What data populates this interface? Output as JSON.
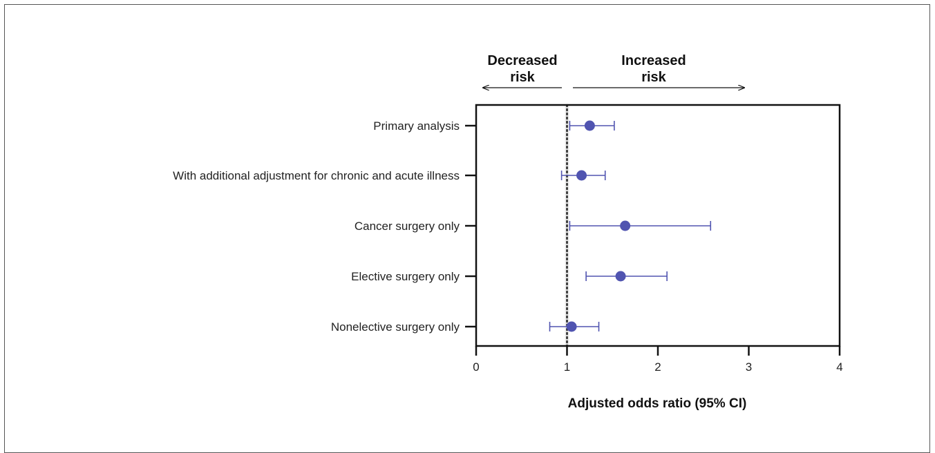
{
  "chart_data": {
    "type": "forest",
    "title": "",
    "xlabel": "Adjusted odds ratio (95% CI)",
    "ylabel": "",
    "xlim": [
      0,
      4
    ],
    "xticks": [
      "0",
      "1",
      "2",
      "3",
      "4"
    ],
    "reference_line": 1,
    "marker_color": "#5054b0",
    "annotations": {
      "left_lines": [
        "Decreased",
        "risk"
      ],
      "right_lines": [
        "Increased",
        "risk"
      ]
    },
    "rows": [
      {
        "label": "Primary analysis",
        "estimate": 1.25,
        "lower": 1.03,
        "upper": 1.52
      },
      {
        "label": "With additional adjustment for chronic and acute illness",
        "estimate": 1.16,
        "lower": 0.94,
        "upper": 1.42
      },
      {
        "label": "Cancer surgery only",
        "estimate": 1.64,
        "lower": 1.03,
        "upper": 2.58
      },
      {
        "label": "Elective surgery only",
        "estimate": 1.59,
        "lower": 1.21,
        "upper": 2.1
      },
      {
        "label": "Nonelective surgery only",
        "estimate": 1.05,
        "lower": 0.81,
        "upper": 1.35
      }
    ]
  }
}
